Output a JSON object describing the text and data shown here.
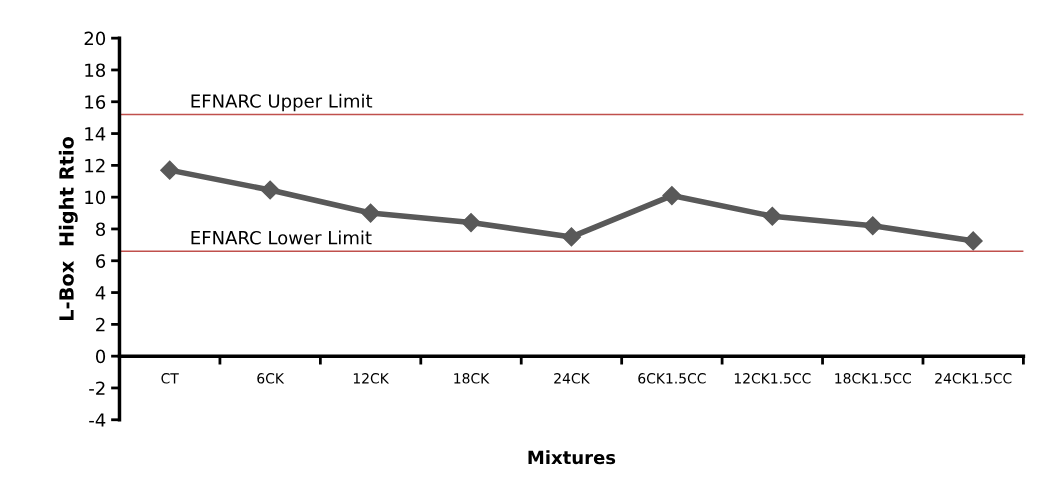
{
  "chart_data": {
    "type": "line",
    "xlabel": "Mixtures",
    "ylabel": "L-Box  Hight Rtio",
    "categories": [
      "CT",
      "6CK",
      "12CK",
      "18CK",
      "24CK",
      "6CK1.5CC",
      "12CK1.5CC",
      "18CK1.5CC",
      "24CK1.5CC"
    ],
    "series": [
      {
        "color": "#595959",
        "values": [
          11.7,
          10.45,
          9.0,
          8.4,
          7.5,
          10.1,
          8.8,
          8.2,
          7.25
        ]
      }
    ],
    "ylim": [
      -4,
      20
    ],
    "yticks": [
      -4,
      -2,
      0,
      2,
      4,
      6,
      8,
      10,
      12,
      14,
      16,
      18,
      20
    ],
    "ref_lines": [
      {
        "axis": "y",
        "value": 15.2,
        "label": "EFNARC Upper Limit",
        "color": "#c0504d"
      },
      {
        "axis": "y",
        "value": 6.6,
        "label": "EFNARC Lower Limit",
        "color": "#c0504d"
      }
    ],
    "marker": "diamond",
    "grid": false,
    "legend": false
  }
}
